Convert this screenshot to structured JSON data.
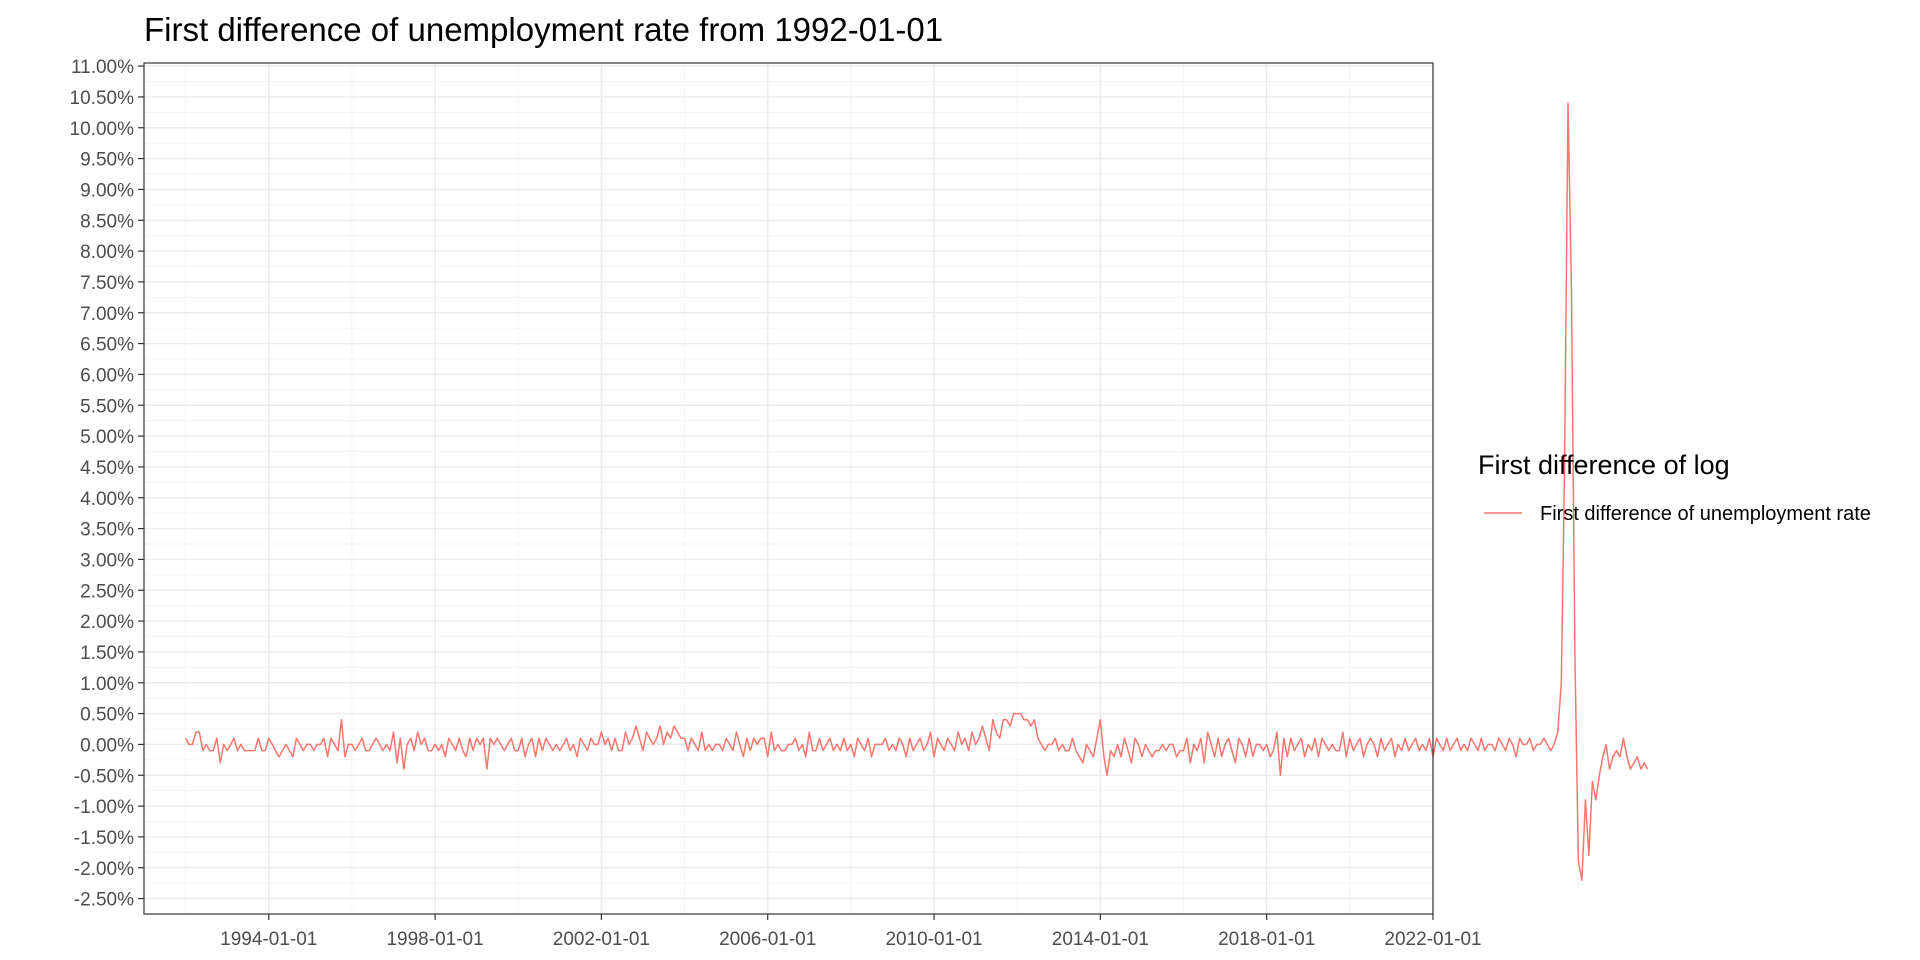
{
  "chart_data": {
    "type": "line",
    "title": "First difference of unemployment rate from 1992-01-01",
    "xlabel": "",
    "ylabel": "",
    "x_range": [
      "1992-01-01",
      "2021-11-01"
    ],
    "x_axis_limits": [
      "1991-01-01",
      "2022-01-01"
    ],
    "x_ticks": [
      "1994-01-01",
      "1998-01-01",
      "2002-01-01",
      "2006-01-01",
      "2010-01-01",
      "2014-01-01",
      "2018-01-01",
      "2022-01-01"
    ],
    "ylim": [
      -2.75,
      11.05
    ],
    "y_ticks": [
      -2.5,
      -2.0,
      -1.5,
      -1.0,
      -0.5,
      0.0,
      0.5,
      1.0,
      1.5,
      2.0,
      2.5,
      3.0,
      3.5,
      4.0,
      4.5,
      5.0,
      5.5,
      6.0,
      6.5,
      7.0,
      7.5,
      8.0,
      8.5,
      9.0,
      9.5,
      10.0,
      10.5,
      11.0
    ],
    "y_tick_labels": [
      "-2.50%",
      "-2.00%",
      "-1.50%",
      "-1.00%",
      "-0.50%",
      "0.00%",
      "0.50%",
      "1.00%",
      "1.50%",
      "2.00%",
      "2.50%",
      "3.00%",
      "3.50%",
      "4.00%",
      "4.50%",
      "5.00%",
      "5.50%",
      "6.00%",
      "6.50%",
      "7.00%",
      "7.50%",
      "8.00%",
      "8.50%",
      "9.00%",
      "9.50%",
      "10.00%",
      "10.50%",
      "11.00%"
    ],
    "y_unit": "%",
    "grid": true,
    "legend_position": "right",
    "legend_title": "First difference of log",
    "series": [
      {
        "name": "First difference of unemployment rate",
        "color": "#F8766D",
        "values": [
          0.1,
          0.0,
          0.0,
          0.2,
          0.2,
          -0.1,
          0.0,
          -0.1,
          -0.1,
          0.1,
          -0.3,
          0.0,
          -0.1,
          0.0,
          0.1,
          -0.1,
          0.0,
          -0.1,
          -0.1,
          -0.1,
          -0.1,
          0.1,
          -0.1,
          -0.1,
          0.1,
          0.0,
          -0.1,
          -0.2,
          -0.1,
          0.0,
          -0.1,
          -0.2,
          0.1,
          0.0,
          -0.1,
          0.0,
          0.0,
          -0.1,
          0.0,
          0.0,
          0.1,
          -0.2,
          0.1,
          0.0,
          -0.1,
          0.4,
          -0.2,
          0.0,
          0.0,
          -0.1,
          0.0,
          0.1,
          -0.1,
          -0.1,
          0.0,
          0.1,
          0.0,
          -0.1,
          0.0,
          -0.1,
          0.2,
          -0.3,
          0.1,
          -0.4,
          0.0,
          0.1,
          -0.1,
          0.2,
          0.0,
          0.1,
          -0.1,
          -0.1,
          0.0,
          -0.1,
          0.0,
          -0.2,
          0.1,
          0.0,
          -0.1,
          0.1,
          -0.1,
          -0.2,
          0.1,
          -0.1,
          0.1,
          0.0,
          0.1,
          -0.4,
          0.1,
          0.0,
          0.1,
          0.0,
          -0.1,
          0.0,
          0.1,
          -0.1,
          -0.1,
          0.1,
          -0.2,
          0.0,
          0.1,
          -0.2,
          0.1,
          -0.1,
          0.1,
          0.0,
          -0.1,
          0.0,
          -0.1,
          0.0,
          0.1,
          -0.1,
          0.0,
          -0.2,
          0.1,
          0.0,
          -0.1,
          0.1,
          0.0,
          0.0,
          0.2,
          0.0,
          0.1,
          -0.1,
          0.1,
          -0.1,
          -0.1,
          0.2,
          0.0,
          0.1,
          0.3,
          0.1,
          -0.1,
          0.2,
          0.1,
          0.0,
          0.1,
          0.3,
          0.0,
          0.2,
          0.1,
          0.3,
          0.2,
          0.1,
          0.1,
          -0.1,
          0.1,
          0.0,
          -0.1,
          0.2,
          -0.1,
          0.0,
          -0.1,
          0.0,
          0.0,
          -0.1,
          0.1,
          0.0,
          -0.1,
          0.2,
          0.0,
          -0.2,
          0.1,
          -0.1,
          0.1,
          0.0,
          0.1,
          0.1,
          -0.2,
          0.2,
          -0.1,
          0.0,
          -0.1,
          -0.1,
          0.0,
          0.0,
          0.1,
          -0.1,
          0.0,
          -0.2,
          0.2,
          -0.1,
          -0.1,
          0.1,
          -0.1,
          0.0,
          0.1,
          -0.1,
          0.0,
          -0.1,
          0.1,
          -0.1,
          0.0,
          -0.2,
          0.1,
          0.0,
          -0.1,
          0.1,
          -0.2,
          0.0,
          0.0,
          0.0,
          0.1,
          -0.1,
          0.0,
          -0.1,
          0.1,
          0.0,
          -0.2,
          0.1,
          -0.1,
          0.0,
          0.1,
          -0.1,
          0.0,
          0.2,
          -0.2,
          0.1,
          0.0,
          -0.1,
          0.1,
          0.0,
          -0.1,
          0.2,
          0.0,
          0.1,
          -0.1,
          0.2,
          0.0,
          0.1,
          0.3,
          0.1,
          -0.1,
          0.4,
          0.2,
          0.1,
          0.4,
          0.4,
          0.3,
          0.5,
          0.5,
          0.5,
          0.4,
          0.4,
          0.3,
          0.4,
          0.1,
          0.0,
          -0.1,
          0.0,
          0.0,
          0.1,
          -0.1,
          0.0,
          -0.1,
          -0.1,
          0.1,
          -0.1,
          -0.2,
          -0.3,
          0.0,
          -0.1,
          -0.2,
          0.1,
          0.4,
          -0.2,
          -0.5,
          -0.1,
          -0.2,
          0.0,
          -0.2,
          0.1,
          -0.1,
          -0.3,
          0.1,
          0.0,
          -0.2,
          0.0,
          -0.1,
          -0.2,
          -0.1,
          -0.1,
          0.0,
          -0.1,
          0.0,
          0.0,
          -0.2,
          -0.1,
          -0.1,
          0.1,
          -0.3,
          0.0,
          -0.1,
          0.1,
          -0.3,
          0.2,
          0.0,
          -0.2,
          0.1,
          -0.2,
          0.0,
          0.1,
          -0.1,
          -0.3,
          0.1,
          0.0,
          -0.2,
          0.1,
          -0.2,
          0.0,
          0.0,
          -0.1,
          0.0,
          -0.2,
          -0.1,
          0.2,
          -0.5,
          0.1,
          -0.2,
          0.1,
          -0.1,
          0.0,
          0.1,
          -0.2,
          0.0,
          -0.1,
          0.1,
          -0.2,
          0.1,
          0.0,
          -0.1,
          0.0,
          -0.1,
          -0.1,
          0.2,
          -0.2,
          0.1,
          -0.1,
          0.0,
          0.1,
          -0.2,
          0.0,
          0.1,
          0.0,
          -0.2,
          0.1,
          -0.1,
          0.0,
          0.1,
          -0.2,
          0.0,
          -0.1,
          0.1,
          -0.1,
          0.0,
          0.1,
          -0.1,
          0.0,
          -0.1,
          0.1,
          -0.2,
          0.1,
          0.0,
          -0.1,
          0.1,
          -0.1,
          0.0,
          0.1,
          -0.1,
          0.0,
          -0.1,
          0.1,
          0.0,
          -0.1,
          0.1,
          -0.1,
          0.0,
          0.0,
          -0.1,
          0.1,
          0.0,
          -0.1,
          0.1,
          0.0,
          -0.2,
          0.1,
          0.0,
          0.0,
          0.1,
          -0.1,
          0.0,
          0.0,
          0.1,
          0.0,
          -0.1,
          0.0,
          0.2,
          1.0,
          4.4,
          10.4,
          7.4,
          1.4,
          -1.9,
          -2.2,
          -0.9,
          -1.8,
          -0.6,
          -0.9,
          -0.5,
          -0.2,
          0.0,
          -0.4,
          -0.2,
          -0.1,
          -0.2,
          0.1,
          -0.2,
          -0.4,
          -0.3,
          -0.2,
          -0.4,
          -0.3,
          -0.4
        ]
      }
    ]
  }
}
